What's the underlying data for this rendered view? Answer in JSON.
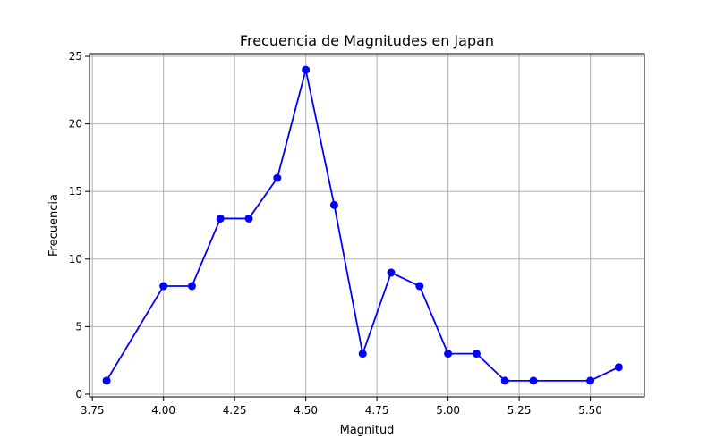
{
  "chart_data": {
    "type": "line",
    "title": "Frecuencia de Magnitudes en Japan",
    "xlabel": "Magnitud",
    "ylabel": "Frecuencia",
    "xlim": [
      3.74,
      5.69
    ],
    "ylim": [
      -0.2,
      25.2
    ],
    "xticks": [
      3.75,
      4.0,
      4.25,
      4.5,
      4.75,
      5.0,
      5.25,
      5.5
    ],
    "xtick_labels": [
      "3.75",
      "4.00",
      "4.25",
      "4.50",
      "4.75",
      "5.00",
      "5.25",
      "5.50"
    ],
    "yticks": [
      0,
      5,
      10,
      15,
      20,
      25
    ],
    "ytick_labels": [
      "0",
      "5",
      "10",
      "15",
      "20",
      "25"
    ],
    "grid": true,
    "series": [
      {
        "color": "#0000ff",
        "marker": "circle",
        "x": [
          3.8,
          4.0,
          4.1,
          4.2,
          4.3,
          4.4,
          4.5,
          4.6,
          4.7,
          4.8,
          4.9,
          5.0,
          5.1,
          5.2,
          5.3,
          5.5,
          5.6
        ],
        "y": [
          1,
          8,
          8,
          13,
          13,
          16,
          24,
          14,
          3,
          9,
          8,
          3,
          3,
          1,
          1,
          1,
          2
        ]
      }
    ]
  }
}
